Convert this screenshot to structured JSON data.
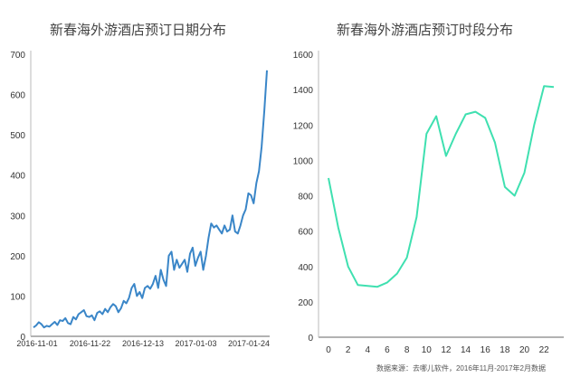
{
  "chart_data": [
    {
      "type": "line",
      "title": "新春海外游酒店预订日期分布",
      "xlabel": "",
      "ylabel": "",
      "ylim": [
        0,
        700
      ],
      "yticks": [
        0,
        100,
        200,
        300,
        400,
        500,
        600,
        700
      ],
      "xtick_labels": [
        "2016-11-01",
        "2016-11-22",
        "2016-12-13",
        "2017-01-03",
        "2017-01-24"
      ],
      "grid": false,
      "color": "#3a86c8",
      "series": [
        {
          "values": [
            22,
            27,
            35,
            30,
            22,
            26,
            24,
            30,
            36,
            28,
            40,
            38,
            45,
            33,
            30,
            48,
            42,
            55,
            60,
            65,
            50,
            48,
            52,
            40,
            58,
            62,
            55,
            68,
            60,
            72,
            80,
            75,
            60,
            70,
            88,
            82,
            95,
            120,
            130,
            100,
            110,
            95,
            120,
            125,
            118,
            130,
            150,
            120,
            165,
            140,
            125,
            200,
            210,
            165,
            190,
            170,
            180,
            190,
            160,
            205,
            220,
            175,
            195,
            210,
            165,
            200,
            245,
            280,
            270,
            275,
            265,
            255,
            275,
            260,
            265,
            300,
            260,
            255,
            275,
            300,
            315,
            355,
            350,
            330,
            380,
            410,
            470,
            560,
            660
          ]
        }
      ]
    },
    {
      "type": "line",
      "title": "新春海外游酒店预订时段分布",
      "xlabel": "",
      "ylabel": "",
      "ylim": [
        0,
        1600
      ],
      "yticks": [
        0,
        200,
        400,
        600,
        800,
        1000,
        1200,
        1400,
        1600
      ],
      "x": [
        0,
        1,
        2,
        3,
        4,
        5,
        6,
        7,
        8,
        9,
        10,
        11,
        12,
        13,
        14,
        15,
        16,
        17,
        18,
        19,
        20,
        21,
        22,
        23
      ],
      "xtick_labels": [
        "0",
        "2",
        "4",
        "6",
        "8",
        "10",
        "12",
        "14",
        "16",
        "18",
        "20",
        "22"
      ],
      "grid": false,
      "color": "#3fe0b0",
      "series": [
        {
          "values": [
            900,
            620,
            400,
            295,
            290,
            285,
            310,
            360,
            450,
            680,
            1150,
            1250,
            1025,
            1150,
            1260,
            1275,
            1240,
            1100,
            850,
            800,
            930,
            1200,
            1420,
            1415
          ]
        }
      ]
    }
  ],
  "source_note": "数据来源：去哪儿软件，2016年11月-2017年2月数据"
}
